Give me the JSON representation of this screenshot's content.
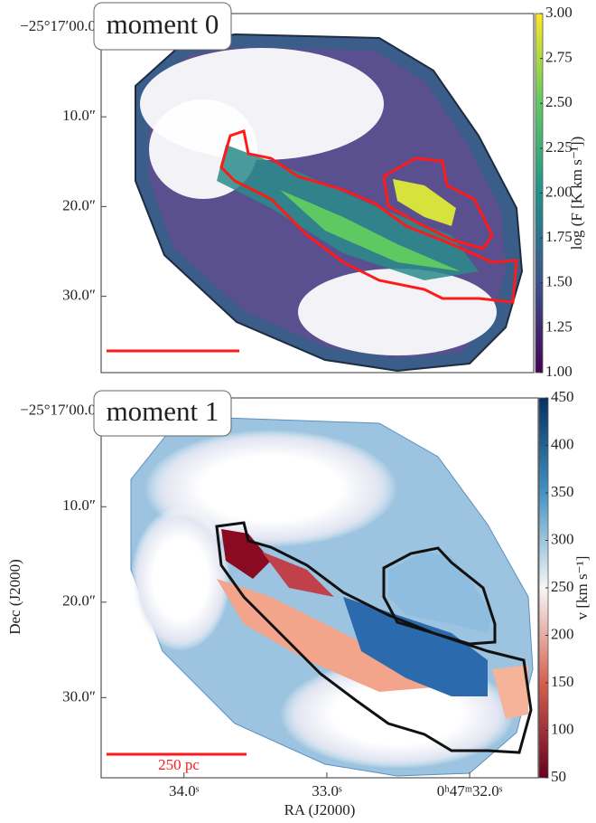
{
  "chart_data": [
    {
      "type": "image",
      "title": "moment 0",
      "ylim": [
        -1.5,
        38.5
      ],
      "yticks": [
        {
          "value": 0,
          "label": "−25°17′00.0"
        },
        {
          "value": 10,
          "label": "10.0″"
        },
        {
          "value": 20,
          "label": "20.0″"
        },
        {
          "value": 30,
          "label": "30.0″"
        }
      ],
      "colorbar": {
        "label": "log (F [K km s⁻¹])",
        "lim": [
          1,
          3
        ],
        "colormap": "viridis",
        "ticks": [
          {
            "value": 1,
            "label": "1.00"
          },
          {
            "value": 1.25,
            "label": "1.25"
          },
          {
            "value": 1.5,
            "label": "1.50"
          },
          {
            "value": 1.75,
            "label": "1.75"
          },
          {
            "value": 2,
            "label": "2.00"
          },
          {
            "value": 2.25,
            "label": "2.25"
          },
          {
            "value": 2.5,
            "label": "2.50"
          },
          {
            "value": 2.75,
            "label": "2.75"
          },
          {
            "value": 3,
            "label": "3.00"
          }
        ]
      }
    },
    {
      "type": "image",
      "title": "moment 1",
      "ylim": [
        -1.4,
        38.4
      ],
      "yticks": [
        {
          "value": 0,
          "label": "−25°17′00.0"
        },
        {
          "value": 10,
          "label": "10.0″"
        },
        {
          "value": 20,
          "label": "20.0″"
        },
        {
          "value": 30,
          "label": "30.0″"
        }
      ],
      "xlim": [
        34.58,
        31.52
      ],
      "xticks": [
        {
          "value": 34,
          "label": "34.0ˢ"
        },
        {
          "value": 33,
          "label": "33.0ˢ"
        },
        {
          "value": 32,
          "label": "0ʰ47ᵐ32.0ˢ"
        }
      ],
      "xlabel": "RA (J2000)",
      "ylabel": "Dec (J2000)",
      "scalebar_label": "250 pc",
      "colorbar": {
        "label": "v [km s⁻¹]",
        "lim": [
          50,
          450
        ],
        "colormap": "RdBu_r",
        "ticks": [
          50,
          100,
          150,
          200,
          250,
          300,
          350,
          400,
          450
        ]
      }
    }
  ]
}
